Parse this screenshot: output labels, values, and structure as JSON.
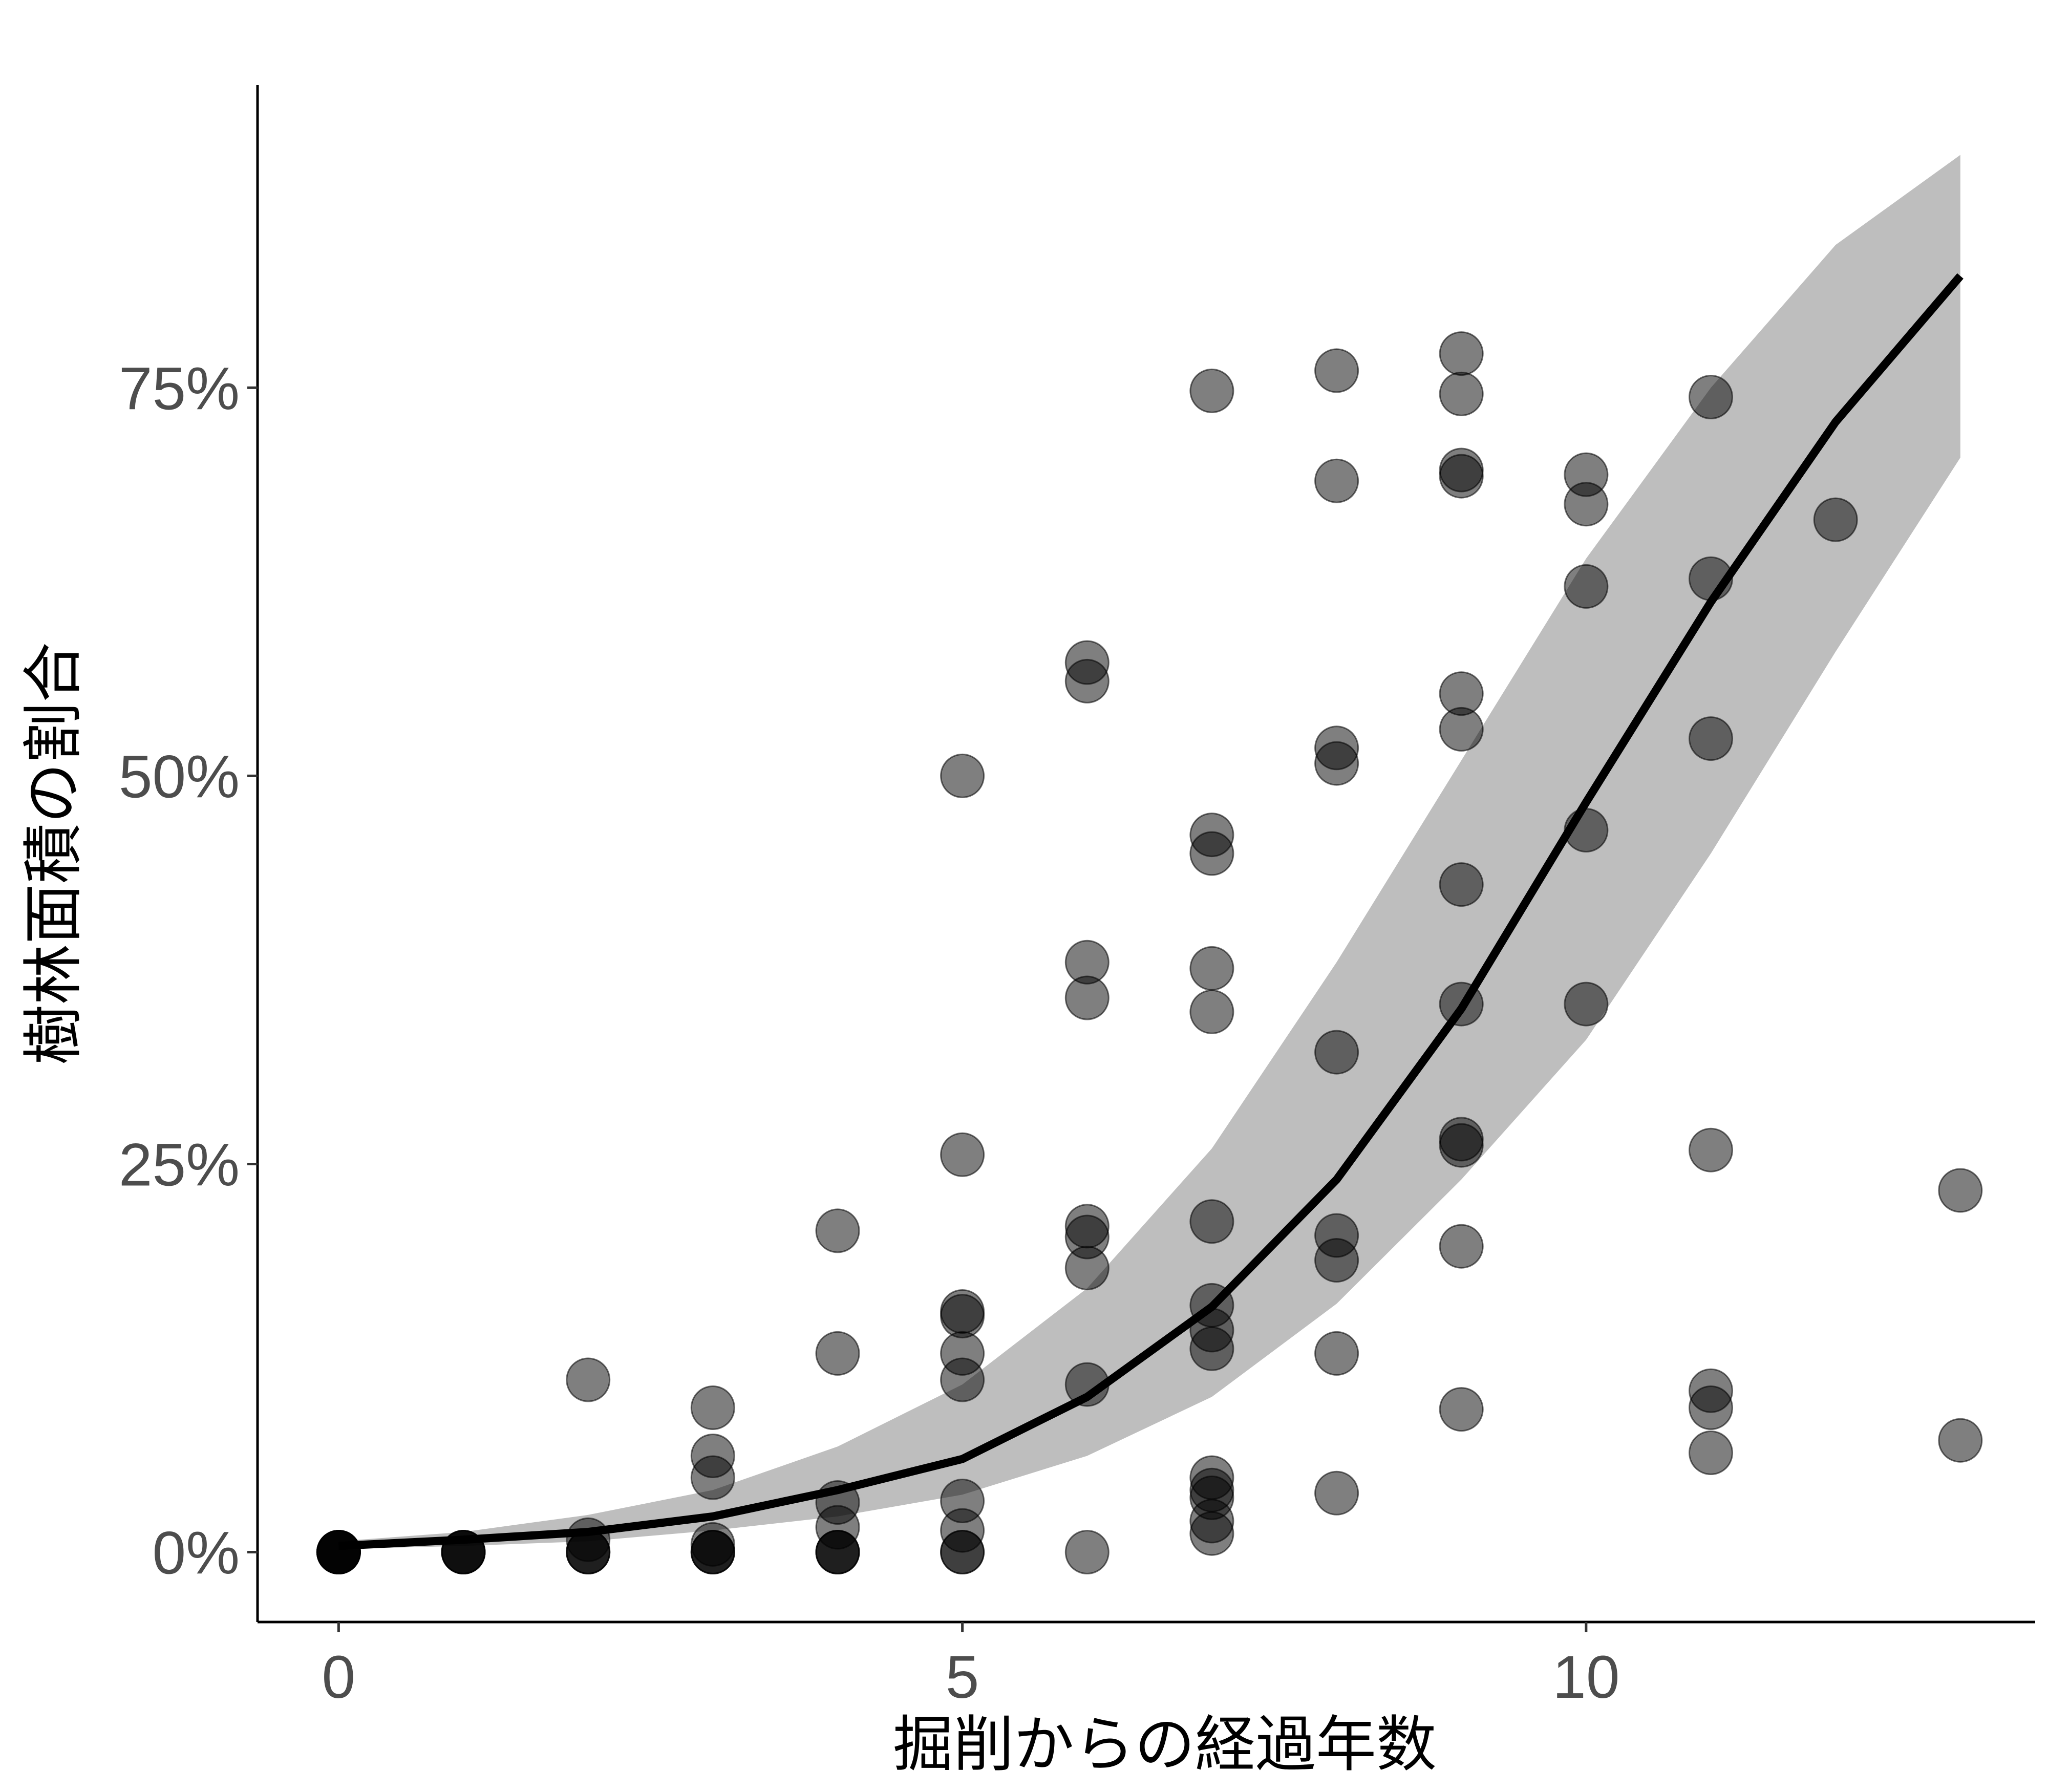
{
  "chart_data": {
    "type": "scatter",
    "xlabel": "掘削からの経過年数",
    "ylabel": "樹林面積の割合",
    "xlim": [
      -0.65,
      13.6
    ],
    "ylim": [
      -0.045,
      0.945
    ],
    "x_ticks": [
      0,
      5,
      10
    ],
    "x_tick_labels": [
      "0",
      "5",
      "10"
    ],
    "y_ticks": [
      0,
      0.25,
      0.5,
      0.75
    ],
    "y_tick_labels": [
      "0%",
      "25%",
      "50%",
      "75%"
    ],
    "grid": false,
    "legend": "none",
    "colors": {
      "points": "#000000",
      "point_opacity": 0.5,
      "ribbon": "#bebebe",
      "fit_line": "#000000",
      "tick_text": "#4d4d4d"
    },
    "points": [
      [
        0,
        0
      ],
      [
        0,
        0
      ],
      [
        0,
        0
      ],
      [
        0,
        0
      ],
      [
        0,
        0
      ],
      [
        0,
        0
      ],
      [
        1,
        0
      ],
      [
        1,
        0
      ],
      [
        1,
        0
      ],
      [
        1,
        0
      ],
      [
        2,
        0.111
      ],
      [
        2,
        0.008
      ],
      [
        2,
        0
      ],
      [
        2,
        0
      ],
      [
        2,
        0
      ],
      [
        3,
        0.093
      ],
      [
        3,
        0.062
      ],
      [
        3,
        0.048
      ],
      [
        3,
        0.005
      ],
      [
        3,
        0
      ],
      [
        3,
        0
      ],
      [
        3,
        0
      ],
      [
        4,
        0.207
      ],
      [
        4,
        0.128
      ],
      [
        4,
        0.032
      ],
      [
        4,
        0.016
      ],
      [
        4,
        0
      ],
      [
        4,
        0
      ],
      [
        4,
        0
      ],
      [
        5,
        0.5
      ],
      [
        5,
        0.256
      ],
      [
        5,
        0.155
      ],
      [
        5,
        0.152
      ],
      [
        5,
        0.128
      ],
      [
        5,
        0.111
      ],
      [
        5,
        0.033
      ],
      [
        5,
        0.014
      ],
      [
        5,
        0
      ],
      [
        5,
        0
      ],
      [
        6,
        0.573
      ],
      [
        6,
        0.561
      ],
      [
        6,
        0.38
      ],
      [
        6,
        0.357
      ],
      [
        6,
        0.21
      ],
      [
        6,
        0.203
      ],
      [
        6,
        0.183
      ],
      [
        6,
        0.108
      ],
      [
        6,
        0
      ],
      [
        7,
        0.748
      ],
      [
        7,
        0.462
      ],
      [
        7,
        0.45
      ],
      [
        7,
        0.376
      ],
      [
        7,
        0.348
      ],
      [
        7,
        0.213
      ],
      [
        7,
        0.159
      ],
      [
        7,
        0.143
      ],
      [
        7,
        0.131
      ],
      [
        7,
        0.048
      ],
      [
        7,
        0.04
      ],
      [
        7,
        0.035
      ],
      [
        7,
        0.02
      ],
      [
        7,
        0.012
      ],
      [
        8,
        0.761
      ],
      [
        8,
        0.69
      ],
      [
        8,
        0.518
      ],
      [
        8,
        0.508
      ],
      [
        8,
        0.322
      ],
      [
        8,
        0.204
      ],
      [
        8,
        0.188
      ],
      [
        8,
        0.128
      ],
      [
        8,
        0.038
      ],
      [
        9,
        0.772
      ],
      [
        9,
        0.746
      ],
      [
        9,
        0.697
      ],
      [
        9,
        0.693
      ],
      [
        9,
        0.553
      ],
      [
        9,
        0.53
      ],
      [
        9,
        0.43
      ],
      [
        9,
        0.353
      ],
      [
        9,
        0.266
      ],
      [
        9,
        0.262
      ],
      [
        9,
        0.197
      ],
      [
        9,
        0.092
      ],
      [
        10,
        0.694
      ],
      [
        10,
        0.675
      ],
      [
        10,
        0.622
      ],
      [
        10,
        0.465
      ],
      [
        10,
        0.353
      ],
      [
        11,
        0.744
      ],
      [
        11,
        0.627
      ],
      [
        11,
        0.524
      ],
      [
        11,
        0.259
      ],
      [
        11,
        0.104
      ],
      [
        11,
        0.093
      ],
      [
        11,
        0.064
      ],
      [
        12,
        0.665
      ],
      [
        13,
        0.233
      ],
      [
        13,
        0.072
      ]
    ],
    "fit": {
      "x": [
        0,
        1,
        2,
        3,
        4,
        5,
        6,
        7,
        8,
        9,
        10,
        11,
        12,
        13
      ],
      "y": [
        0.004,
        0.008,
        0.013,
        0.023,
        0.04,
        0.06,
        0.1,
        0.158,
        0.24,
        0.35,
        0.483,
        0.612,
        0.728,
        0.822
      ],
      "lower": [
        0.002,
        0.004,
        0.007,
        0.014,
        0.023,
        0.037,
        0.062,
        0.1,
        0.16,
        0.24,
        0.33,
        0.45,
        0.58,
        0.705
      ],
      "upper": [
        0.007,
        0.013,
        0.024,
        0.04,
        0.068,
        0.108,
        0.17,
        0.26,
        0.38,
        0.51,
        0.64,
        0.75,
        0.842,
        0.9
      ]
    }
  }
}
